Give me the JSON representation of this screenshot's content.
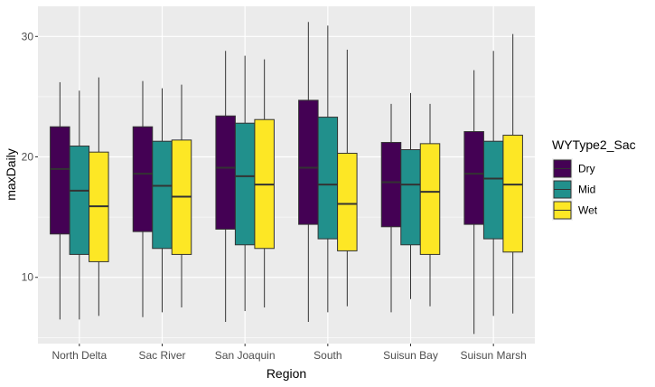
{
  "chart_data": {
    "type": "box",
    "xlabel": "Region",
    "ylabel": "maxDaily",
    "ylim": [
      4.5,
      32.5
    ],
    "yticks": [
      10,
      20,
      30
    ],
    "grid": true,
    "legend": {
      "title": "WYType2_Sac",
      "placement": "right"
    },
    "categories": [
      "North Delta",
      "Sac River",
      "San Joaquin",
      "South",
      "Suisun Bay",
      "Suisun Marsh"
    ],
    "series": [
      {
        "name": "Dry",
        "color": "#440154",
        "boxes": [
          {
            "min": 6.5,
            "q1": 13.6,
            "median": 19.0,
            "q3": 22.5,
            "max": 26.2
          },
          {
            "min": 6.7,
            "q1": 13.8,
            "median": 18.6,
            "q3": 22.5,
            "max": 26.3
          },
          {
            "min": 6.3,
            "q1": 14.0,
            "median": 19.1,
            "q3": 23.4,
            "max": 28.8
          },
          {
            "min": 6.3,
            "q1": 14.4,
            "median": 19.1,
            "q3": 24.7,
            "max": 31.2
          },
          {
            "min": 7.1,
            "q1": 14.2,
            "median": 17.9,
            "q3": 21.2,
            "max": 24.4
          },
          {
            "min": 5.3,
            "q1": 14.4,
            "median": 18.6,
            "q3": 22.1,
            "max": 27.2
          }
        ]
      },
      {
        "name": "Mid",
        "color": "#21908C",
        "boxes": [
          {
            "min": 6.5,
            "q1": 11.9,
            "median": 17.2,
            "q3": 20.9,
            "max": 25.5
          },
          {
            "min": 7.1,
            "q1": 12.4,
            "median": 17.6,
            "q3": 21.3,
            "max": 25.7
          },
          {
            "min": 7.2,
            "q1": 12.7,
            "median": 18.4,
            "q3": 22.8,
            "max": 28.4
          },
          {
            "min": 7.1,
            "q1": 13.2,
            "median": 17.7,
            "q3": 23.3,
            "max": 30.9
          },
          {
            "min": 8.2,
            "q1": 12.7,
            "median": 17.7,
            "q3": 20.6,
            "max": 25.3
          },
          {
            "min": 6.8,
            "q1": 13.2,
            "median": 18.2,
            "q3": 21.3,
            "max": 28.8
          }
        ]
      },
      {
        "name": "Wet",
        "color": "#FDE725",
        "boxes": [
          {
            "min": 6.8,
            "q1": 11.3,
            "median": 15.9,
            "q3": 20.4,
            "max": 26.6
          },
          {
            "min": 7.5,
            "q1": 11.9,
            "median": 16.7,
            "q3": 21.4,
            "max": 26.0
          },
          {
            "min": 7.5,
            "q1": 12.4,
            "median": 17.7,
            "q3": 23.1,
            "max": 28.1
          },
          {
            "min": 7.6,
            "q1": 12.2,
            "median": 16.1,
            "q3": 20.3,
            "max": 28.9
          },
          {
            "min": 7.6,
            "q1": 11.9,
            "median": 17.1,
            "q3": 21.1,
            "max": 24.4
          },
          {
            "min": 7.0,
            "q1": 12.1,
            "median": 17.7,
            "q3": 21.8,
            "max": 30.2
          }
        ]
      }
    ]
  }
}
